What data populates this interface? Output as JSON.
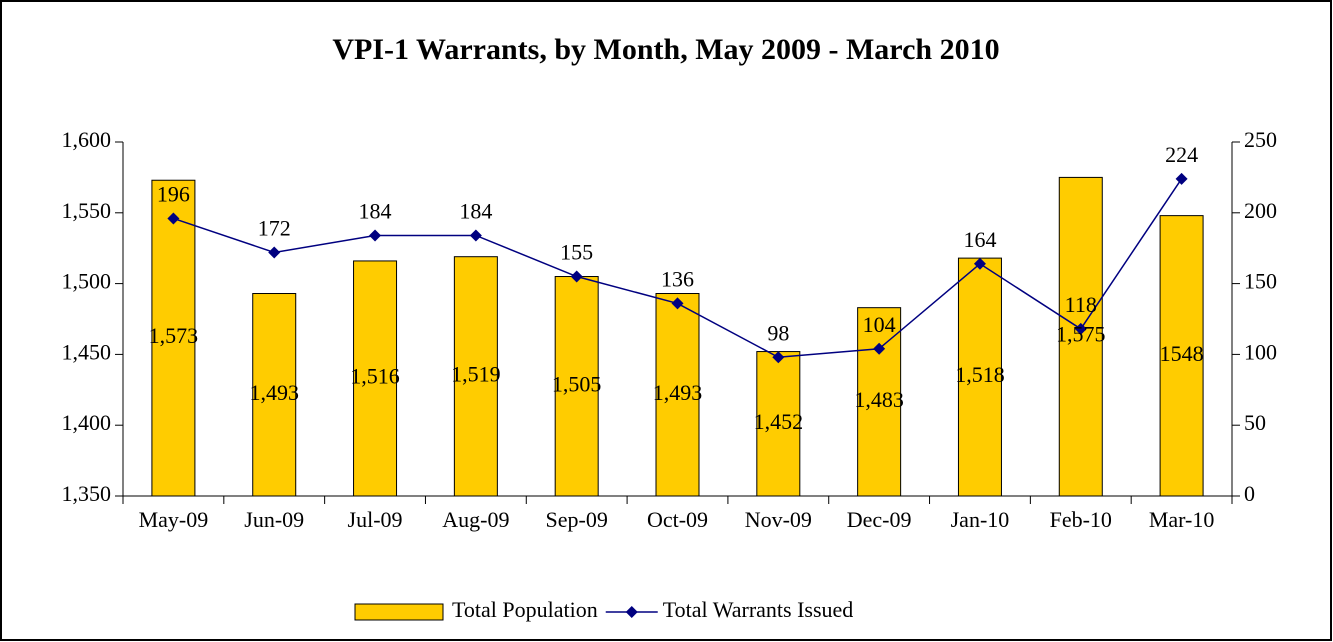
{
  "chart_data": {
    "type": "bar",
    "title": "VPI-1 Warrants, by Month, May 2009 - March 2010",
    "categories": [
      "May-09",
      "Jun-09",
      "Jul-09",
      "Aug-09",
      "Sep-09",
      "Oct-09",
      "Nov-09",
      "Dec-09",
      "Jan-10",
      "Feb-10",
      "Mar-10"
    ],
    "series": [
      {
        "name": "Total Population",
        "type": "bar",
        "color": "#FFCC00",
        "values": [
          1573,
          1493,
          1516,
          1519,
          1505,
          1493,
          1452,
          1483,
          1518,
          1575,
          1548
        ],
        "value_labels": [
          "1,573",
          "1,493",
          "1,516",
          "1,519",
          "1,505",
          "1,493",
          "1,452",
          "1,483",
          "1,518",
          "1,575",
          "1548"
        ]
      },
      {
        "name": "Total Warrants Issued",
        "type": "line",
        "color": "#000080",
        "axis": "y2",
        "values": [
          196,
          172,
          184,
          184,
          155,
          136,
          98,
          104,
          164,
          118,
          224
        ]
      }
    ],
    "ylim": [
      1350,
      1600
    ],
    "yticks": [
      {
        "value": 1350,
        "label": "1,350"
      },
      {
        "value": 1400,
        "label": "1,400"
      },
      {
        "value": 1450,
        "label": "1,450"
      },
      {
        "value": 1500,
        "label": "1,500"
      },
      {
        "value": 1550,
        "label": "1,550"
      },
      {
        "value": 1600,
        "label": "1,600"
      }
    ],
    "y2lim": [
      0,
      250
    ],
    "y2ticks": [
      0,
      50,
      100,
      150,
      200,
      250
    ],
    "legend": "bottom"
  }
}
